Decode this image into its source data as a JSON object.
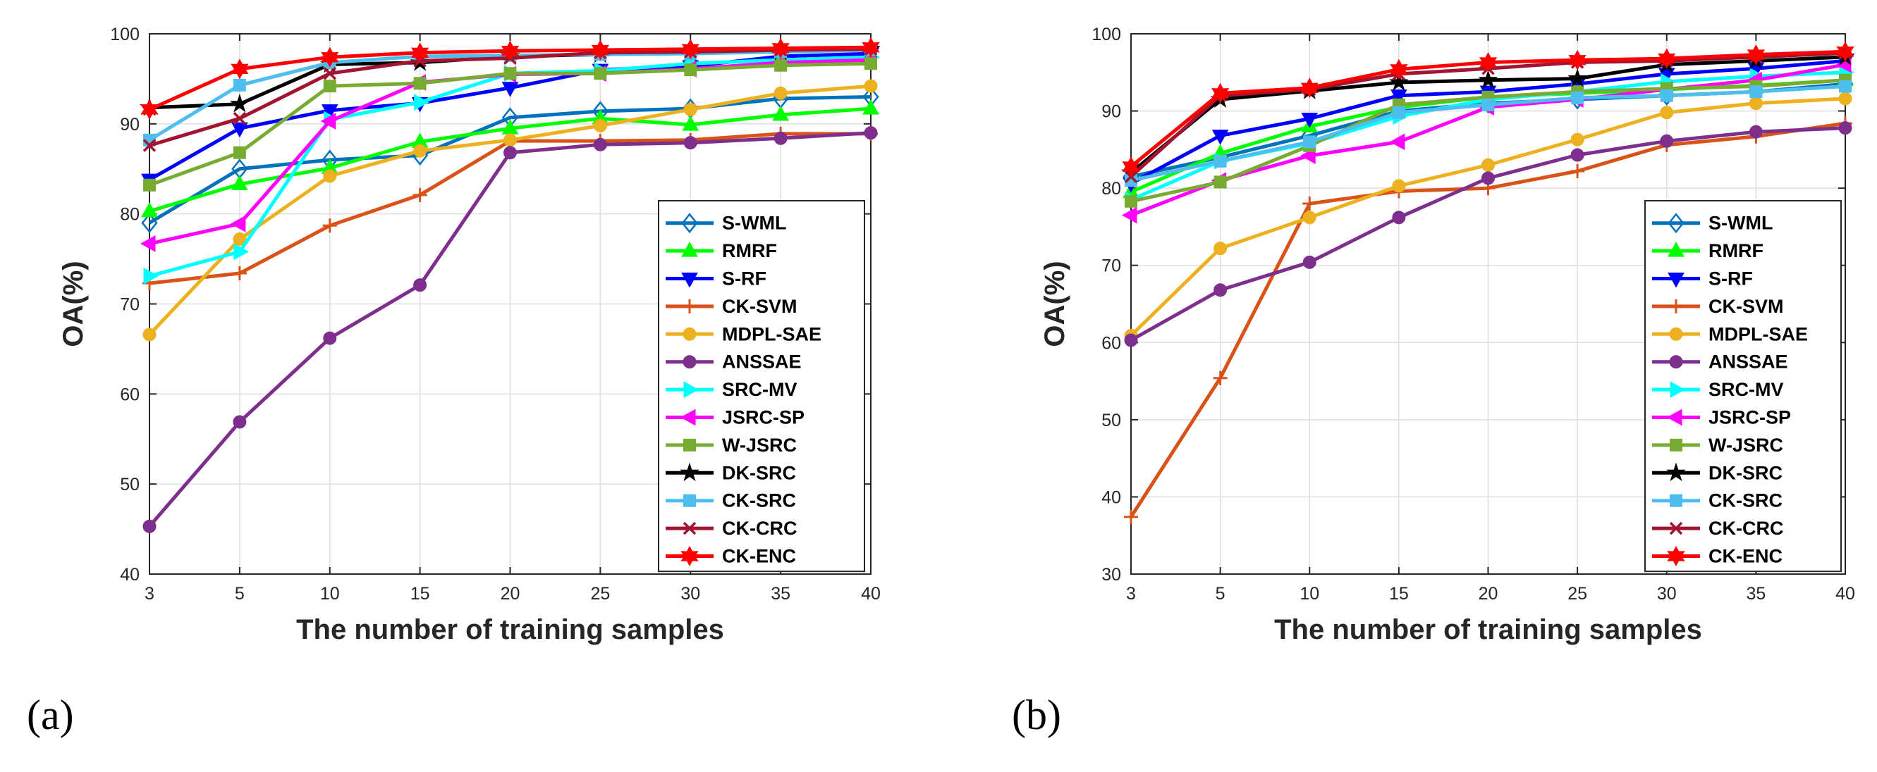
{
  "chart_data": [
    {
      "type": "line",
      "panel_label": "(a)",
      "xlabel": "The number of training samples",
      "ylabel": "OA(%)",
      "categories": [
        "3",
        "5",
        "10",
        "15",
        "20",
        "25",
        "30",
        "35",
        "40"
      ],
      "ylim": [
        40,
        100
      ],
      "yticks": [
        40,
        50,
        60,
        70,
        80,
        90,
        100
      ],
      "grid": true,
      "legend_position": "lower-right",
      "series": [
        {
          "name": "S-WML",
          "color": "#0072BD",
          "marker": "diamond",
          "values": [
            79.0,
            85.0,
            86.0,
            86.5,
            90.7,
            91.4,
            91.7,
            92.8,
            93.0
          ]
        },
        {
          "name": "RMRF",
          "color": "#00FF00",
          "marker": "triangle-up",
          "values": [
            80.3,
            83.3,
            85.1,
            88.0,
            89.5,
            90.6,
            89.9,
            91.0,
            91.7
          ]
        },
        {
          "name": "S-RF",
          "color": "#0000FF",
          "marker": "triangle-down",
          "values": [
            83.8,
            89.5,
            91.5,
            92.3,
            94.0,
            96.0,
            96.4,
            97.5,
            97.8
          ]
        },
        {
          "name": "CK-SVM",
          "color": "#D95319",
          "marker": "plus",
          "values": [
            72.3,
            73.4,
            78.7,
            82.1,
            88.1,
            88.1,
            88.2,
            88.9,
            88.9
          ]
        },
        {
          "name": "MDPL-SAE",
          "color": "#EDB120",
          "marker": "circle",
          "values": [
            66.6,
            77.2,
            84.2,
            87.0,
            88.2,
            89.8,
            91.6,
            93.4,
            94.2
          ]
        },
        {
          "name": "ANSSAE",
          "color": "#7E2F8E",
          "marker": "circle",
          "values": [
            45.3,
            56.9,
            66.2,
            72.1,
            86.8,
            87.7,
            87.9,
            88.4,
            89.0
          ]
        },
        {
          "name": "SRC-MV",
          "color": "#00FFFF",
          "marker": "triangle-right",
          "values": [
            73.1,
            75.8,
            90.5,
            92.4,
            95.6,
            95.9,
            96.7,
            97.1,
            97.4
          ]
        },
        {
          "name": "JSRC-SP",
          "color": "#FF00FF",
          "marker": "triangle-left",
          "values": [
            76.7,
            78.9,
            90.3,
            94.6,
            95.5,
            95.6,
            96.1,
            96.8,
            97.1
          ]
        },
        {
          "name": "W-JSRC",
          "color": "#77AC30",
          "marker": "square",
          "values": [
            83.2,
            86.8,
            94.2,
            94.5,
            95.6,
            95.6,
            96.0,
            96.5,
            96.7
          ]
        },
        {
          "name": "DK-SRC",
          "color": "#000000",
          "marker": "star",
          "values": [
            91.8,
            92.2,
            96.6,
            96.8,
            97.5,
            97.7,
            97.9,
            98.0,
            98.3
          ]
        },
        {
          "name": "CK-SRC",
          "color": "#4DBEEE",
          "marker": "square",
          "values": [
            88.2,
            94.3,
            96.8,
            97.5,
            97.6,
            97.7,
            97.8,
            98.0,
            98.2
          ]
        },
        {
          "name": "CK-CRC",
          "color": "#A2142F",
          "marker": "x",
          "values": [
            87.6,
            90.6,
            95.6,
            97.0,
            97.3,
            97.9,
            98.0,
            98.2,
            98.3
          ]
        },
        {
          "name": "CK-ENC",
          "color": "#FF0000",
          "marker": "hexagram",
          "values": [
            91.6,
            96.1,
            97.4,
            97.9,
            98.1,
            98.2,
            98.3,
            98.4,
            98.5
          ]
        }
      ]
    },
    {
      "type": "line",
      "panel_label": "(b)",
      "xlabel": "The number of training samples",
      "ylabel": "OA(%)",
      "categories": [
        "3",
        "5",
        "10",
        "15",
        "20",
        "25",
        "30",
        "35",
        "40"
      ],
      "ylim": [
        30,
        100
      ],
      "yticks": [
        30,
        40,
        50,
        60,
        70,
        80,
        90,
        100
      ],
      "grid": true,
      "legend_position": "lower-right",
      "series": [
        {
          "name": "S-WML",
          "color": "#0072BD",
          "marker": "diamond",
          "values": [
            81.5,
            84.0,
            86.8,
            90.0,
            91.0,
            91.5,
            92.0,
            92.5,
            93.5
          ]
        },
        {
          "name": "RMRF",
          "color": "#00FF00",
          "marker": "triangle-up",
          "values": [
            79.5,
            84.5,
            88.0,
            90.5,
            91.8,
            92.3,
            92.8,
            93.3,
            94.0
          ]
        },
        {
          "name": "S-RF",
          "color": "#0000FF",
          "marker": "triangle-down",
          "values": [
            80.6,
            86.8,
            89.0,
            92.0,
            92.5,
            93.5,
            94.8,
            95.5,
            96.5
          ]
        },
        {
          "name": "CK-SVM",
          "color": "#D95319",
          "marker": "plus",
          "values": [
            37.4,
            55.4,
            78.0,
            79.6,
            80.0,
            82.2,
            85.6,
            86.7,
            88.4
          ]
        },
        {
          "name": "MDPL-SAE",
          "color": "#EDB120",
          "marker": "circle",
          "values": [
            60.9,
            72.2,
            76.2,
            80.3,
            83.0,
            86.3,
            89.8,
            91.0,
            91.6
          ]
        },
        {
          "name": "ANSSAE",
          "color": "#7E2F8E",
          "marker": "circle",
          "values": [
            60.3,
            66.8,
            70.4,
            76.2,
            81.3,
            84.3,
            86.1,
            87.3,
            87.8
          ]
        },
        {
          "name": "SRC-MV",
          "color": "#00FFFF",
          "marker": "triangle-right",
          "values": [
            78.5,
            83.5,
            85.8,
            89.3,
            91.5,
            92.5,
            93.8,
            94.5,
            95.0
          ]
        },
        {
          "name": "JSRC-SP",
          "color": "#FF00FF",
          "marker": "triangle-left",
          "values": [
            76.5,
            81.0,
            84.2,
            86.0,
            90.5,
            91.5,
            92.8,
            94.0,
            96.0
          ]
        },
        {
          "name": "W-JSRC",
          "color": "#77AC30",
          "marker": "square",
          "values": [
            78.3,
            80.8,
            85.5,
            90.8,
            91.8,
            92.5,
            92.9,
            93.2,
            94.0
          ]
        },
        {
          "name": "DK-SRC",
          "color": "#000000",
          "marker": "star",
          "values": [
            82.0,
            91.5,
            92.6,
            93.7,
            94.0,
            94.2,
            96.0,
            96.5,
            97.0
          ]
        },
        {
          "name": "CK-SRC",
          "color": "#4DBEEE",
          "marker": "square",
          "values": [
            81.0,
            83.5,
            86.0,
            89.8,
            90.8,
            91.7,
            92.0,
            92.5,
            93.2
          ]
        },
        {
          "name": "CK-CRC",
          "color": "#A2142F",
          "marker": "x",
          "values": [
            81.5,
            92.0,
            92.8,
            94.8,
            95.5,
            96.3,
            96.5,
            97.0,
            97.5
          ]
        },
        {
          "name": "CK-ENC",
          "color": "#FF0000",
          "marker": "hexagram",
          "values": [
            82.8,
            92.3,
            93.0,
            95.4,
            96.3,
            96.6,
            96.8,
            97.3,
            97.7
          ]
        }
      ]
    }
  ]
}
